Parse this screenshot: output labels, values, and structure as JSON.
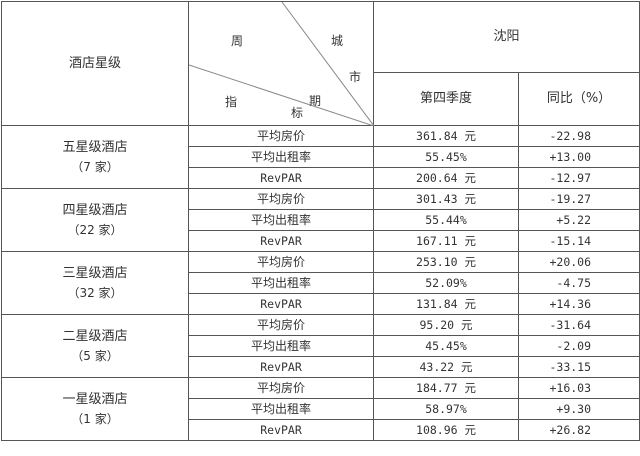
{
  "header": {
    "star_level": "酒店星级",
    "diag_labels": {
      "zhou": "周",
      "qi": "期",
      "cheng": "城",
      "shi": "市",
      "zhi": "指",
      "biao": "标"
    },
    "city": "沈阳",
    "col_q4": "第四季度",
    "col_yoy": "同比（%）"
  },
  "groups": [
    {
      "name": "五星级酒店",
      "count": "（7 家）",
      "rows": [
        {
          "metric": "平均房价",
          "value": "361.84 元",
          "yoy": "-22.98"
        },
        {
          "metric": "平均出租率",
          "value": "55.45%",
          "yoy": "+13.00"
        },
        {
          "metric": "RevPAR",
          "value": "200.64 元",
          "yoy": "-12.97"
        }
      ]
    },
    {
      "name": "四星级酒店",
      "count": "（22 家）",
      "rows": [
        {
          "metric": "平均房价",
          "value": "301.43 元",
          "yoy": "-19.27"
        },
        {
          "metric": "平均出租率",
          "value": "55.44%",
          "yoy": "+5.22"
        },
        {
          "metric": "RevPAR",
          "value": "167.11 元",
          "yoy": "-15.14"
        }
      ]
    },
    {
      "name": "三星级酒店",
      "count": "（32 家）",
      "rows": [
        {
          "metric": "平均房价",
          "value": "253.10 元",
          "yoy": "+20.06"
        },
        {
          "metric": "平均出租率",
          "value": "52.09%",
          "yoy": "-4.75"
        },
        {
          "metric": "RevPAR",
          "value": "131.84 元",
          "yoy": "+14.36"
        }
      ]
    },
    {
      "name": "二星级酒店",
      "count": "（5 家）",
      "rows": [
        {
          "metric": "平均房价",
          "value": "95.20 元",
          "yoy": "-31.64"
        },
        {
          "metric": "平均出租率",
          "value": "45.45%",
          "yoy": "-2.09"
        },
        {
          "metric": "RevPAR",
          "value": "43.22 元",
          "yoy": "-33.15"
        }
      ]
    },
    {
      "name": "一星级酒店",
      "count": "（1 家）",
      "rows": [
        {
          "metric": "平均房价",
          "value": "184.77 元",
          "yoy": "+16.03"
        },
        {
          "metric": "平均出租率",
          "value": "58.97%",
          "yoy": "+9.30"
        },
        {
          "metric": "RevPAR",
          "value": "108.96 元",
          "yoy": "+26.82"
        }
      ]
    }
  ]
}
